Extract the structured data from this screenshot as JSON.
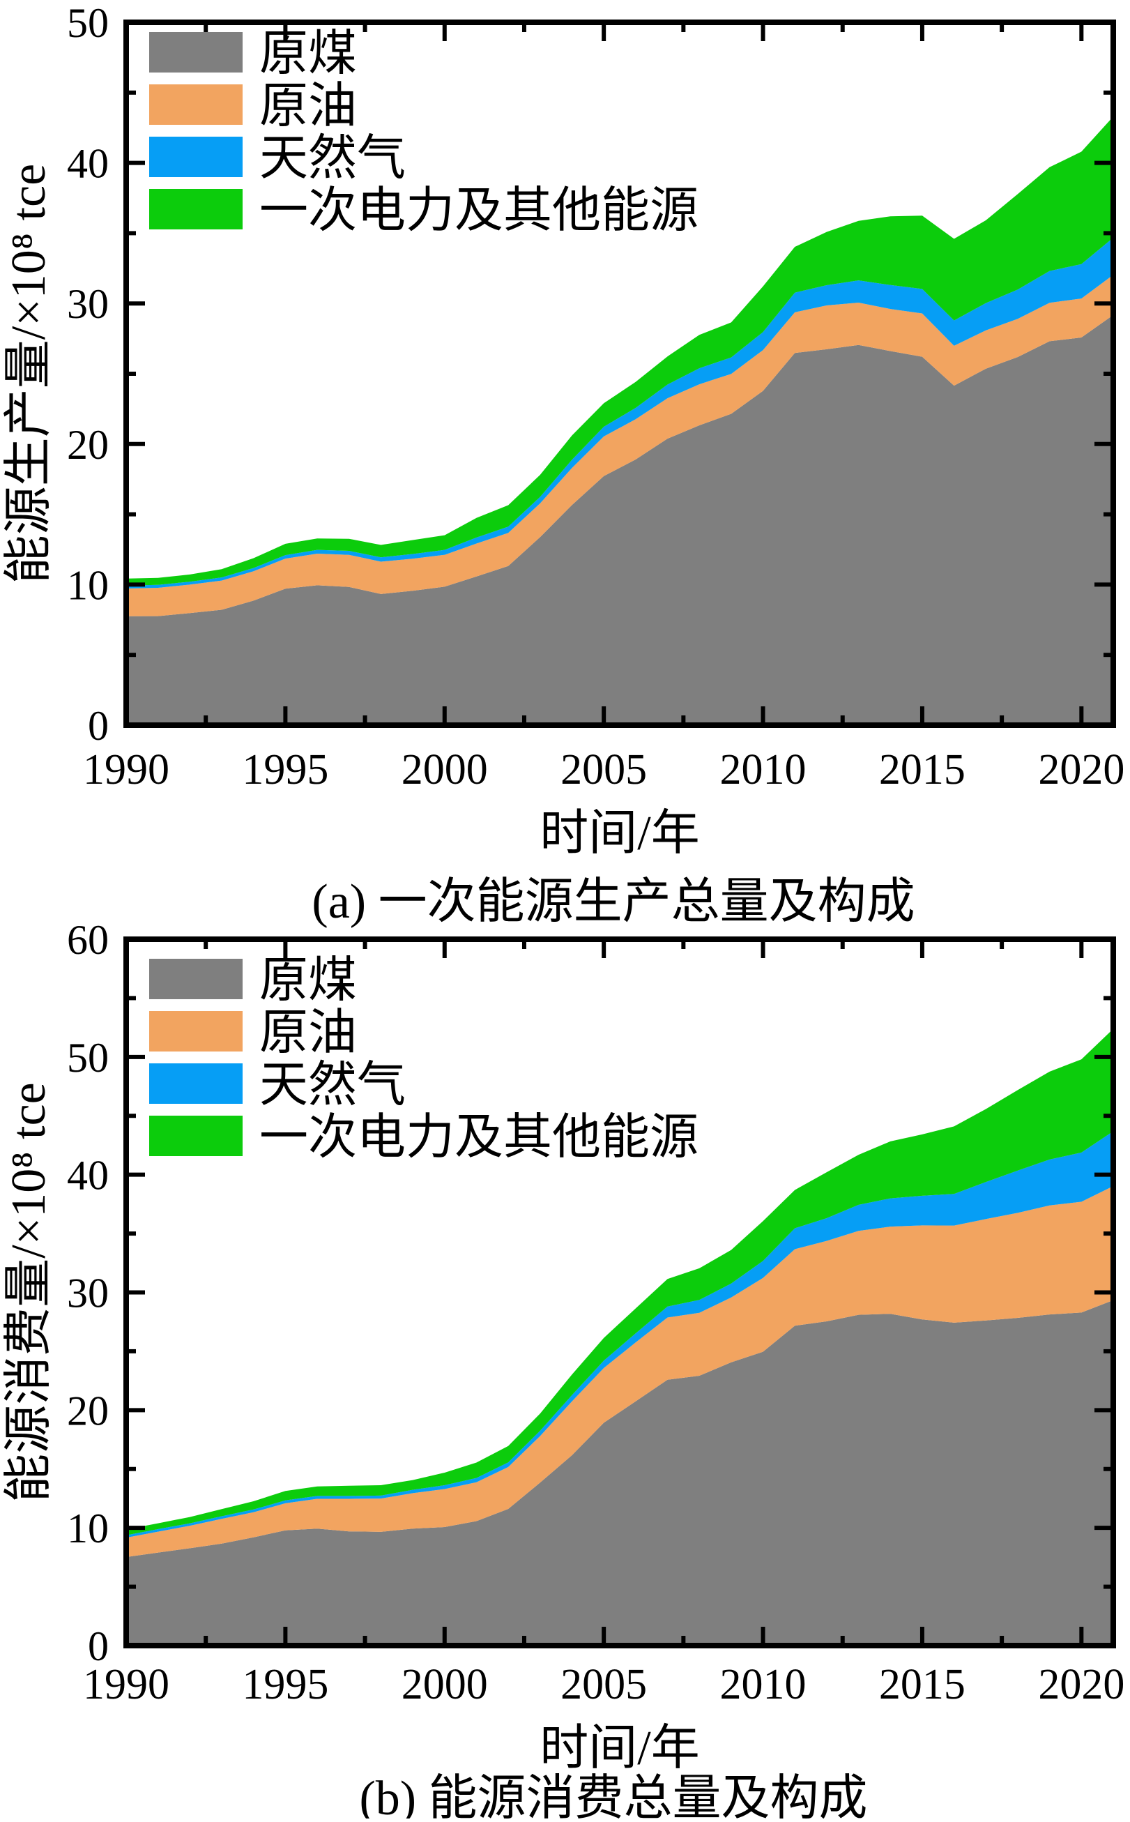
{
  "figure_title": "",
  "chart_data": [
    {
      "id": "production",
      "type": "area",
      "stacked": true,
      "caption": "(a) 一次能源生产总量及构成",
      "x_title": "时间/年",
      "y_title": "能源生产量/×10⁸ tce",
      "ylim": [
        0,
        50
      ],
      "y_major_ticks": [
        0,
        10,
        20,
        30,
        40,
        50
      ],
      "y_minor_step": 5,
      "xlim": [
        1990,
        2021
      ],
      "x_major_ticks": [
        1990,
        1995,
        2000,
        2005,
        2010,
        2015,
        2020
      ],
      "x_minor_step": 2.5,
      "grid": false,
      "legend_position": "top-left-inside",
      "x": [
        1990,
        1991,
        1992,
        1993,
        1994,
        1995,
        1996,
        1997,
        1998,
        1999,
        2000,
        2001,
        2002,
        2003,
        2004,
        2005,
        2006,
        2007,
        2008,
        2009,
        2010,
        2011,
        2012,
        2013,
        2014,
        2015,
        2016,
        2017,
        2018,
        2019,
        2020,
        2021
      ],
      "series": [
        {
          "key": "coal",
          "name": "原煤",
          "color": "#7f7f7f",
          "values": [
            7.75,
            7.76,
            7.97,
            8.21,
            8.86,
            9.71,
            9.95,
            9.83,
            9.33,
            9.56,
            9.85,
            10.58,
            11.32,
            13.38,
            15.66,
            17.72,
            18.9,
            20.38,
            21.33,
            22.15,
            23.78,
            26.48,
            26.74,
            27.05,
            26.61,
            26.21,
            24.15,
            25.36,
            26.19,
            27.31,
            27.58,
            29.18
          ]
        },
        {
          "key": "crude-oil",
          "name": "原油",
          "color": "#f2a460",
          "values": [
            1.97,
            2.01,
            2.03,
            2.08,
            2.09,
            2.14,
            2.25,
            2.29,
            2.3,
            2.28,
            2.27,
            2.34,
            2.36,
            2.4,
            2.64,
            2.82,
            2.86,
            2.88,
            2.92,
            2.84,
            2.9,
            2.89,
            3.12,
            3.01,
            3.0,
            3.08,
            2.84,
            2.73,
            2.72,
            2.74,
            2.77,
            2.86
          ]
        },
        {
          "key": "natural-gas",
          "name": "天然气",
          "color": "#069ef5",
          "values": [
            0.21,
            0.21,
            0.21,
            0.22,
            0.23,
            0.25,
            0.27,
            0.28,
            0.31,
            0.34,
            0.35,
            0.43,
            0.44,
            0.46,
            0.58,
            0.69,
            0.81,
            0.97,
            1.14,
            1.17,
            1.28,
            1.4,
            1.44,
            1.58,
            1.7,
            1.74,
            1.8,
            1.94,
            2.08,
            2.26,
            2.45,
            2.64
          ]
        },
        {
          "key": "primary-electricity-other",
          "name": "一次电力及其他能源",
          "color": "#0ccc0c",
          "values": [
            0.5,
            0.5,
            0.51,
            0.59,
            0.7,
            0.8,
            0.81,
            0.86,
            0.88,
            0.99,
            1.04,
            1.39,
            1.53,
            1.57,
            1.73,
            1.67,
            1.85,
            2.0,
            2.38,
            2.49,
            3.25,
            3.26,
            3.79,
            4.24,
            4.89,
            5.22,
            5.81,
            5.89,
            6.8,
            7.38,
            8.0,
            8.62
          ]
        }
      ]
    },
    {
      "id": "consumption",
      "type": "area",
      "stacked": true,
      "caption": "(b) 能源消费总量及构成",
      "x_title": "时间/年",
      "y_title": "能源消费量/×10⁸ tce",
      "ylim": [
        0,
        60
      ],
      "y_major_ticks": [
        0,
        10,
        20,
        30,
        40,
        50,
        60
      ],
      "y_minor_step": 5,
      "xlim": [
        1990,
        2021
      ],
      "x_major_ticks": [
        1990,
        1995,
        2000,
        2005,
        2010,
        2015,
        2020
      ],
      "x_minor_step": 2.5,
      "grid": false,
      "legend_position": "top-left-inside",
      "x": [
        1990,
        1991,
        1992,
        1993,
        1994,
        1995,
        1996,
        1997,
        1998,
        1999,
        2000,
        2001,
        2002,
        2003,
        2004,
        2005,
        2006,
        2007,
        2008,
        2009,
        2010,
        2011,
        2012,
        2013,
        2014,
        2015,
        2016,
        2017,
        2018,
        2019,
        2020,
        2021
      ],
      "series": [
        {
          "key": "coal",
          "name": "原煤",
          "color": "#7f7f7f",
          "values": [
            7.52,
            7.9,
            8.27,
            8.66,
            9.2,
            9.79,
            9.94,
            9.7,
            9.66,
            9.93,
            10.07,
            10.57,
            11.61,
            13.84,
            16.17,
            18.93,
            20.74,
            22.58,
            22.92,
            24.06,
            24.96,
            27.17,
            27.54,
            28.1,
            28.18,
            27.7,
            27.43,
            27.62,
            27.84,
            28.13,
            28.29,
            29.34
          ]
        },
        {
          "key": "crude-oil",
          "name": "原油",
          "color": "#f2a460",
          "values": [
            1.64,
            1.78,
            1.91,
            2.11,
            2.13,
            2.3,
            2.53,
            2.77,
            2.83,
            3.02,
            3.23,
            3.3,
            3.56,
            3.96,
            4.58,
            4.65,
            5.01,
            5.29,
            5.35,
            5.51,
            6.27,
            6.5,
            6.84,
            7.13,
            7.41,
            7.99,
            8.25,
            8.61,
            8.92,
            9.26,
            9.41,
            9.69
          ]
        },
        {
          "key": "natural-gas",
          "name": "天然气",
          "color": "#069ef5",
          "values": [
            0.21,
            0.21,
            0.21,
            0.22,
            0.23,
            0.24,
            0.24,
            0.24,
            0.25,
            0.28,
            0.32,
            0.37,
            0.39,
            0.45,
            0.53,
            0.63,
            0.77,
            0.93,
            1.09,
            1.18,
            1.44,
            1.78,
            1.93,
            2.21,
            2.4,
            2.52,
            2.69,
            3.15,
            3.59,
            3.9,
            4.18,
            4.66
          ]
        },
        {
          "key": "primary-electricity-other",
          "name": "一次电力及其他能源",
          "color": "#0ccc0c",
          "values": [
            0.5,
            0.5,
            0.53,
            0.6,
            0.7,
            0.8,
            0.81,
            0.87,
            0.88,
            0.83,
            1.07,
            1.31,
            1.39,
            1.46,
            1.75,
            1.93,
            2.12,
            2.34,
            2.69,
            2.86,
            3.39,
            3.25,
            3.9,
            4.25,
            4.84,
            5.21,
            5.73,
            6.2,
            6.84,
            7.46,
            7.92,
            8.7
          ]
        }
      ]
    }
  ]
}
